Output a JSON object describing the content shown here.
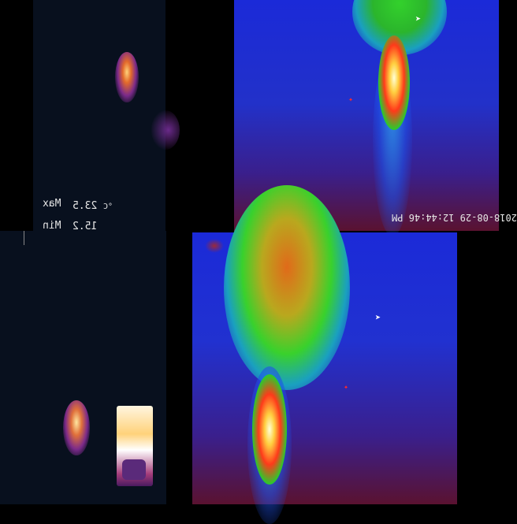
{
  "readouts": {
    "max_label": "Max",
    "max_value": "23.5",
    "max_unit": "°C",
    "min_label": "Min",
    "min_value": "15.2"
  },
  "timestamp": "2018-08-29 12:44:46 PM"
}
